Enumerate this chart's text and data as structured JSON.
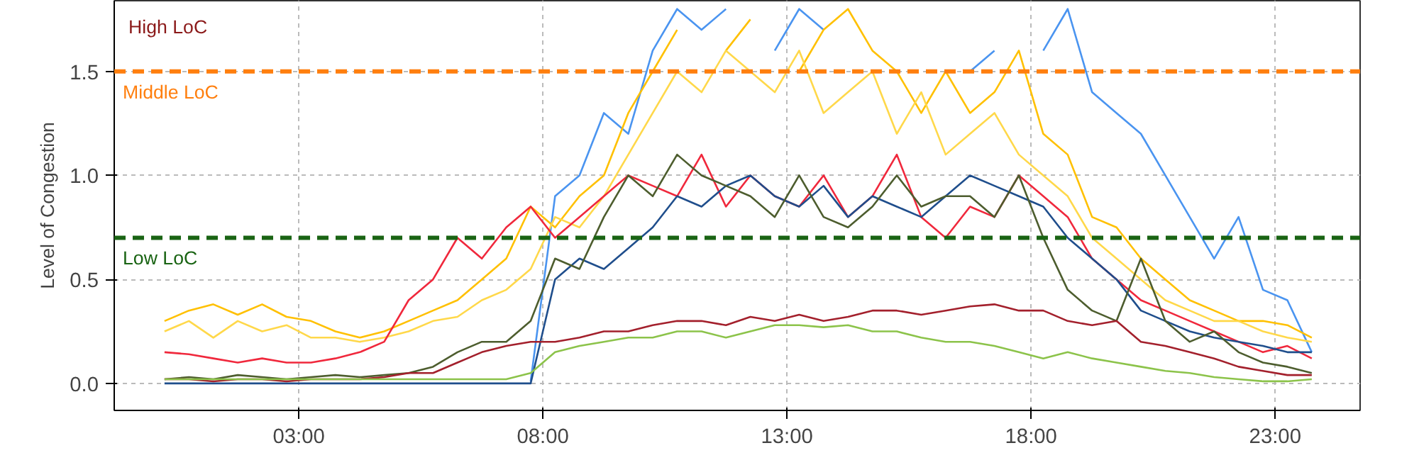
{
  "chart_data": {
    "type": "line",
    "ylabel": "Level of Congestion",
    "x": [
      0.25,
      0.75,
      1.25,
      1.75,
      2.25,
      2.75,
      3.25,
      3.75,
      4.25,
      4.75,
      5.25,
      5.75,
      6.25,
      6.75,
      7.25,
      7.75,
      8.25,
      8.75,
      9.25,
      9.75,
      10.25,
      10.75,
      11.25,
      11.75,
      12.25,
      12.75,
      13.25,
      13.75,
      14.25,
      14.75,
      15.25,
      15.75,
      16.25,
      16.75,
      17.25,
      17.75,
      18.25,
      18.75,
      19.25,
      19.75,
      20.25,
      20.75,
      21.25,
      21.75,
      22.25,
      22.75,
      23.25,
      23.75
    ],
    "series": [
      {
        "color": "#4a94f0",
        "values": [
          null,
          null,
          null,
          null,
          null,
          null,
          null,
          null,
          null,
          null,
          null,
          null,
          null,
          null,
          null,
          0.01,
          0.9,
          1.0,
          1.3,
          1.2,
          1.6,
          1.8,
          1.7,
          1.8,
          null,
          1.6,
          1.8,
          1.7,
          null,
          null,
          null,
          null,
          null,
          1.5,
          1.6,
          null,
          1.6,
          1.8,
          1.4,
          1.3,
          1.2,
          1.0,
          0.8,
          0.6,
          0.8,
          0.45,
          0.4,
          0.15
        ]
      },
      {
        "color": "#ffc000",
        "values": [
          0.3,
          0.35,
          0.38,
          0.33,
          0.38,
          0.32,
          0.3,
          0.25,
          0.22,
          0.25,
          0.3,
          0.35,
          0.4,
          0.5,
          0.6,
          0.85,
          0.75,
          0.9,
          1.0,
          1.3,
          1.5,
          1.7,
          null,
          1.6,
          1.75,
          null,
          1.5,
          1.7,
          1.8,
          1.6,
          1.5,
          1.3,
          1.5,
          1.3,
          1.4,
          1.6,
          1.2,
          1.1,
          0.8,
          0.75,
          0.6,
          0.5,
          0.4,
          0.35,
          0.3,
          0.3,
          0.28,
          0.22
        ]
      },
      {
        "color": "#ffd84a",
        "values": [
          0.25,
          0.3,
          0.22,
          0.3,
          0.25,
          0.28,
          0.22,
          0.22,
          0.2,
          0.22,
          0.25,
          0.3,
          0.32,
          0.4,
          0.45,
          0.55,
          0.8,
          0.75,
          0.9,
          1.1,
          1.3,
          1.5,
          1.4,
          1.6,
          1.5,
          1.4,
          1.6,
          1.3,
          1.4,
          1.5,
          1.2,
          1.4,
          1.1,
          1.2,
          1.3,
          1.1,
          1.0,
          0.9,
          0.7,
          0.6,
          0.5,
          0.4,
          0.35,
          0.3,
          0.3,
          0.25,
          0.22,
          0.2
        ]
      },
      {
        "color": "#f0283c",
        "values": [
          0.15,
          0.14,
          0.12,
          0.1,
          0.12,
          0.1,
          0.1,
          0.12,
          0.15,
          0.2,
          0.4,
          0.5,
          0.7,
          0.6,
          0.75,
          0.85,
          0.7,
          0.8,
          0.9,
          1.0,
          0.95,
          0.9,
          1.1,
          0.85,
          1.0,
          0.9,
          0.85,
          1.0,
          0.8,
          0.9,
          1.1,
          0.8,
          0.7,
          0.85,
          0.8,
          1.0,
          0.9,
          0.8,
          0.6,
          0.5,
          0.4,
          0.35,
          0.3,
          0.25,
          0.2,
          0.15,
          0.18,
          0.12
        ]
      },
      {
        "color": "#1f4e8c",
        "values": [
          0.0,
          0.0,
          0.0,
          0.0,
          0.0,
          0.0,
          0.0,
          0.0,
          0.0,
          0.0,
          0.0,
          0.0,
          0.0,
          0.0,
          0.0,
          0.0,
          0.5,
          0.6,
          0.55,
          0.65,
          0.75,
          0.9,
          0.85,
          0.95,
          1.0,
          0.9,
          0.85,
          0.95,
          0.8,
          0.9,
          0.85,
          0.8,
          0.9,
          1.0,
          0.95,
          0.9,
          0.85,
          0.7,
          0.6,
          0.5,
          0.35,
          0.3,
          0.25,
          0.22,
          0.2,
          0.18,
          0.15,
          0.15
        ]
      },
      {
        "color": "#4d5d2e",
        "values": [
          0.02,
          0.03,
          0.02,
          0.04,
          0.03,
          0.02,
          0.03,
          0.04,
          0.03,
          0.04,
          0.05,
          0.08,
          0.15,
          0.2,
          0.2,
          0.3,
          0.6,
          0.55,
          0.8,
          1.0,
          0.9,
          1.1,
          1.0,
          0.95,
          0.9,
          0.8,
          1.0,
          0.8,
          0.75,
          0.85,
          1.0,
          0.85,
          0.9,
          0.9,
          0.8,
          1.0,
          0.7,
          0.45,
          0.35,
          0.3,
          0.6,
          0.3,
          0.2,
          0.25,
          0.15,
          0.1,
          0.08,
          0.05
        ]
      },
      {
        "color": "#a3202c",
        "values": [
          0.02,
          0.02,
          0.01,
          0.02,
          0.02,
          0.01,
          0.02,
          0.02,
          0.02,
          0.03,
          0.05,
          0.05,
          0.1,
          0.15,
          0.18,
          0.2,
          0.2,
          0.22,
          0.25,
          0.25,
          0.28,
          0.3,
          0.3,
          0.28,
          0.32,
          0.3,
          0.33,
          0.3,
          0.32,
          0.35,
          0.35,
          0.33,
          0.35,
          0.37,
          0.38,
          0.35,
          0.35,
          0.3,
          0.28,
          0.3,
          0.2,
          0.18,
          0.15,
          0.12,
          0.08,
          0.06,
          0.04,
          0.04
        ]
      },
      {
        "color": "#8cc34a",
        "values": [
          0.02,
          0.02,
          0.02,
          0.02,
          0.02,
          0.02,
          0.02,
          0.02,
          0.02,
          0.02,
          0.02,
          0.02,
          0.02,
          0.02,
          0.02,
          0.05,
          0.15,
          0.18,
          0.2,
          0.22,
          0.22,
          0.25,
          0.25,
          0.22,
          0.25,
          0.28,
          0.28,
          0.27,
          0.28,
          0.25,
          0.25,
          0.22,
          0.2,
          0.2,
          0.18,
          0.15,
          0.12,
          0.15,
          0.12,
          0.1,
          0.08,
          0.06,
          0.05,
          0.03,
          0.02,
          0.01,
          0.01,
          0.02
        ]
      }
    ],
    "xlim": [
      -0.78,
      24.74
    ],
    "ylim": [
      -0.13,
      1.84
    ],
    "xticks": [
      {
        "value": 3,
        "label": "03:00"
      },
      {
        "value": 8,
        "label": "08:00"
      },
      {
        "value": 13,
        "label": "13:00"
      },
      {
        "value": 18,
        "label": "18:00"
      },
      {
        "value": 23,
        "label": "23:00"
      }
    ],
    "yticks": [
      {
        "value": 0,
        "label": "0.0"
      },
      {
        "value": 0.5,
        "label": "0.5"
      },
      {
        "value": 1,
        "label": "1.0"
      },
      {
        "value": 1.5,
        "label": "1.5"
      }
    ],
    "ref_lines": [
      {
        "axis": "y",
        "value": 1.5,
        "label": "Middle LoC",
        "color": "#ff7f0e",
        "line_style": "dashed"
      },
      {
        "axis": "y",
        "value": 0.7,
        "label": "Low LoC",
        "color": "#1a6414",
        "line_style": "dashed"
      }
    ],
    "annotations": [
      "High LoC"
    ],
    "grid": true,
    "marker": "none",
    "line_style": "solid"
  }
}
